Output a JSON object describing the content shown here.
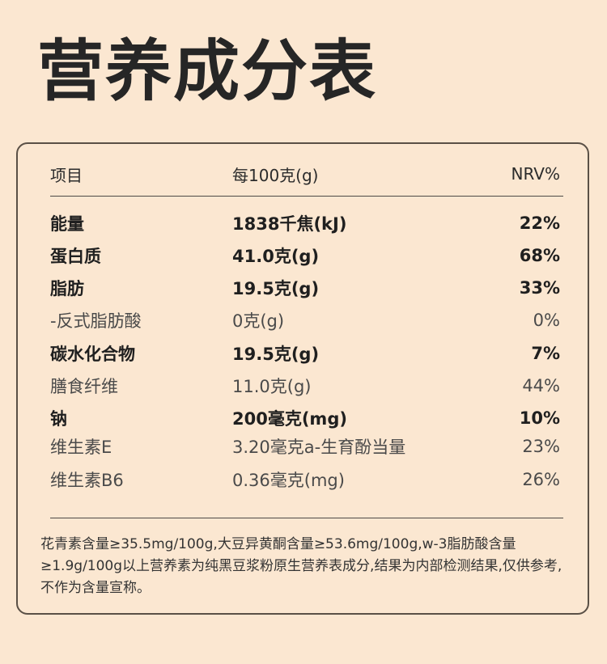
{
  "title": "营养成分表",
  "header": {
    "item": "项目",
    "per100": "每100克(g)",
    "nrv": "NRV%"
  },
  "rows": [
    {
      "name": "能量",
      "amount": "1838千焦(kJ)",
      "nrv": "22%"
    },
    {
      "name": "蛋白质",
      "amount": "41.0克(g)",
      "nrv": "68%"
    },
    {
      "name": "脂肪",
      "amount": "19.5克(g)",
      "nrv": "33%"
    },
    {
      "name": "-反式脂肪酸",
      "amount": "0克(g)",
      "nrv": "0%"
    },
    {
      "name": "碳水化合物",
      "amount": "19.5克(g)",
      "nrv": "7%"
    },
    {
      "name": "膳食纤维",
      "amount": "11.0克(g)",
      "nrv": "44%"
    },
    {
      "name": "钠",
      "amount": "200毫克(mg)",
      "nrv": "10%"
    },
    {
      "name": "维生素E",
      "amount": "3.20毫克a-生育酚当量",
      "nrv": "23%"
    },
    {
      "name": "维生素B6",
      "amount": "0.36毫克(mg)",
      "nrv": "26%"
    }
  ],
  "footnote": "花青素含量≥35.5mg/100g,大豆异黄酮含量≥53.6mg/100g,w-3脂肪酸含量≥1.9g/100g以上营养素为纯黑豆浆粉原生营养表成分,结果为内部检测结果,仅供参考,不作为含量宣称。"
}
